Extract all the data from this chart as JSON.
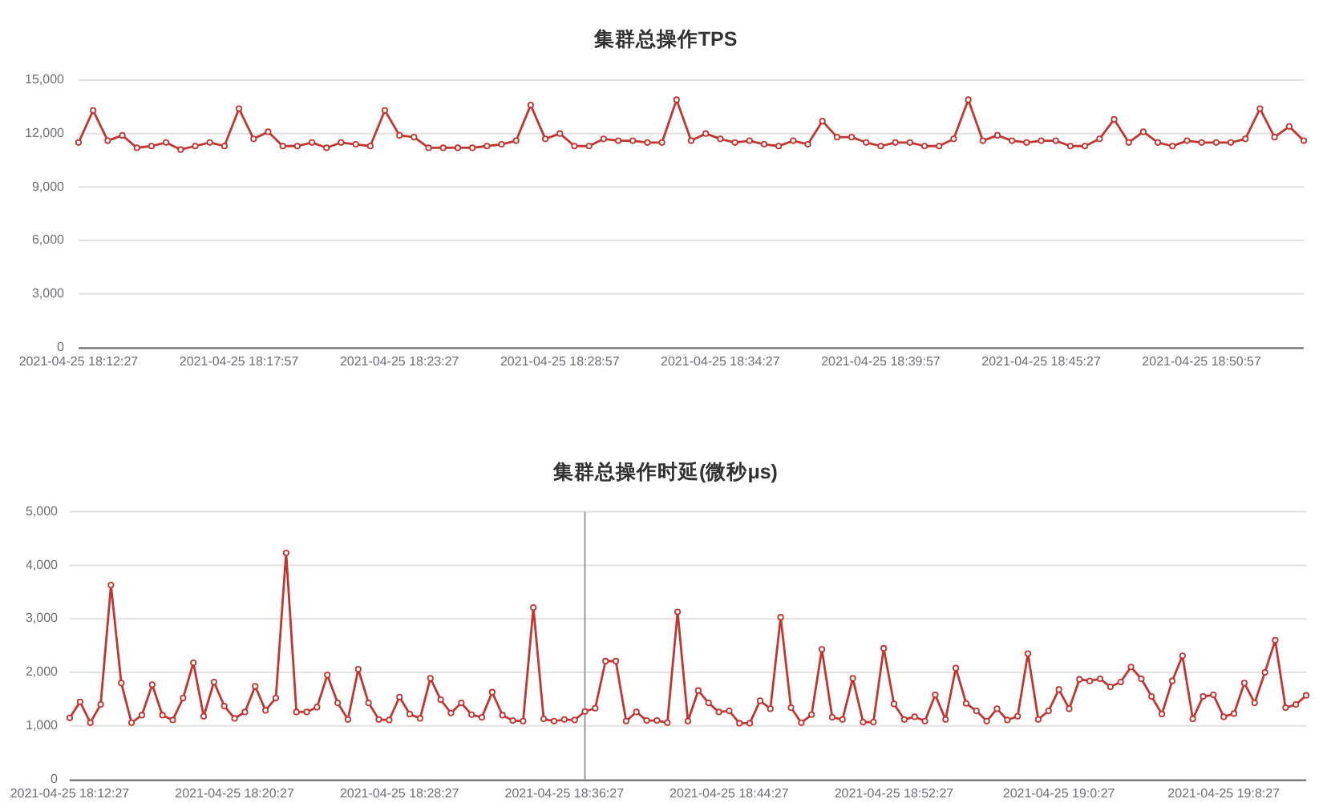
{
  "chart_data": [
    {
      "type": "line",
      "title": "集群总操作TPS",
      "x": [
        "2021-04-25T18:12:27",
        "2021-04-25T18:12:57",
        "2021-04-25T18:13:27",
        "2021-04-25T18:13:57",
        "2021-04-25T18:14:27",
        "2021-04-25T18:14:57",
        "2021-04-25T18:15:27",
        "2021-04-25T18:15:57",
        "2021-04-25T18:16:27",
        "2021-04-25T18:16:57",
        "2021-04-25T18:17:27",
        "2021-04-25T18:17:57",
        "2021-04-25T18:18:27",
        "2021-04-25T18:18:57",
        "2021-04-25T18:19:27",
        "2021-04-25T18:19:57",
        "2021-04-25T18:20:27",
        "2021-04-25T18:20:57",
        "2021-04-25T18:21:27",
        "2021-04-25T18:21:57",
        "2021-04-25T18:22:27",
        "2021-04-25T18:22:57",
        "2021-04-25T18:23:27",
        "2021-04-25T18:23:57",
        "2021-04-25T18:24:27",
        "2021-04-25T18:24:57",
        "2021-04-25T18:25:27",
        "2021-04-25T18:25:57",
        "2021-04-25T18:26:27",
        "2021-04-25T18:26:57",
        "2021-04-25T18:27:27",
        "2021-04-25T18:27:57",
        "2021-04-25T18:28:27",
        "2021-04-25T18:28:57",
        "2021-04-25T18:29:27",
        "2021-04-25T18:29:57",
        "2021-04-25T18:30:27",
        "2021-04-25T18:30:57",
        "2021-04-25T18:31:27",
        "2021-04-25T18:31:57",
        "2021-04-25T18:32:27",
        "2021-04-25T18:32:57",
        "2021-04-25T18:33:27",
        "2021-04-25T18:33:57",
        "2021-04-25T18:34:27",
        "2021-04-25T18:34:57",
        "2021-04-25T18:35:27",
        "2021-04-25T18:35:57",
        "2021-04-25T18:36:27",
        "2021-04-25T18:36:57",
        "2021-04-25T18:37:27",
        "2021-04-25T18:37:57",
        "2021-04-25T18:38:27",
        "2021-04-25T18:38:57",
        "2021-04-25T18:39:27",
        "2021-04-25T18:39:57",
        "2021-04-25T18:40:27",
        "2021-04-25T18:40:57",
        "2021-04-25T18:41:27",
        "2021-04-25T18:41:57",
        "2021-04-25T18:42:27",
        "2021-04-25T18:42:57",
        "2021-04-25T18:43:27",
        "2021-04-25T18:43:57",
        "2021-04-25T18:44:27",
        "2021-04-25T18:44:57",
        "2021-04-25T18:45:27",
        "2021-04-25T18:45:57",
        "2021-04-25T18:46:27",
        "2021-04-25T18:46:57",
        "2021-04-25T18:47:27",
        "2021-04-25T18:47:57",
        "2021-04-25T18:48:27",
        "2021-04-25T18:48:57",
        "2021-04-25T18:49:27",
        "2021-04-25T18:49:57",
        "2021-04-25T18:50:27",
        "2021-04-25T18:50:57",
        "2021-04-25T18:51:27",
        "2021-04-25T18:51:57",
        "2021-04-25T18:52:27",
        "2021-04-25T18:52:57",
        "2021-04-25T18:53:27",
        "2021-04-25T18:53:57",
        "2021-04-25T18:54:27"
      ],
      "series": [
        {
          "color": "#c23531",
          "values": [
            11500,
            13300,
            11600,
            11900,
            11200,
            11300,
            11500,
            11100,
            11300,
            11500,
            11300,
            13400,
            11700,
            12100,
            11300,
            11300,
            11500,
            11200,
            11500,
            11400,
            11300,
            13300,
            11900,
            11800,
            11200,
            11200,
            11200,
            11200,
            11300,
            11400,
            11600,
            13600,
            11700,
            12000,
            11300,
            11300,
            11700,
            11600,
            11600,
            11500,
            11500,
            13900,
            11600,
            12000,
            11700,
            11500,
            11600,
            11400,
            11300,
            11600,
            11400,
            12700,
            11800,
            11800,
            11500,
            11300,
            11500,
            11500,
            11300,
            11300,
            11700,
            13900,
            11600,
            11900,
            11600,
            11500,
            11600,
            11600,
            11300,
            11300,
            11700,
            12800,
            11500,
            12100,
            11500,
            11300,
            11600,
            11500,
            11500,
            11500,
            11700,
            13400,
            11800,
            12400,
            11600
          ]
        }
      ],
      "xlim": [
        "2021-04-25T18:12:27",
        "2021-04-25T18:54:27"
      ],
      "xticks": [
        {
          "value": "2021-04-25T18:12:27",
          "label": "2021-04-25 18:12:27"
        },
        {
          "value": "2021-04-25T18:17:57",
          "label": "2021-04-25 18:17:57"
        },
        {
          "value": "2021-04-25T18:23:27",
          "label": "2021-04-25 18:23:27"
        },
        {
          "value": "2021-04-25T18:28:57",
          "label": "2021-04-25 18:28:57"
        },
        {
          "value": "2021-04-25T18:34:27",
          "label": "2021-04-25 18:34:27"
        },
        {
          "value": "2021-04-25T18:39:57",
          "label": "2021-04-25 18:39:57"
        },
        {
          "value": "2021-04-25T18:45:27",
          "label": "2021-04-25 18:45:27"
        },
        {
          "value": "2021-04-25T18:50:57",
          "label": "2021-04-25 18:50:57"
        }
      ],
      "ylim": [
        0,
        15000
      ],
      "yticks": [
        0,
        {
          "value": 3000,
          "label": "3,000"
        },
        {
          "value": 6000,
          "label": "6,000"
        },
        {
          "value": 9000,
          "label": "9,000"
        },
        {
          "value": 12000,
          "label": "12,000"
        },
        {
          "value": 15000,
          "label": "15,000"
        }
      ],
      "grid": "y",
      "marker": "circle",
      "line_style": "solid"
    },
    {
      "type": "line",
      "title": "集群总操作时延(微秒μs)",
      "x": [
        "2021-04-25T18:12:27",
        "2021-04-25T18:12:57",
        "2021-04-25T18:13:27",
        "2021-04-25T18:13:57",
        "2021-04-25T18:14:27",
        "2021-04-25T18:14:57",
        "2021-04-25T18:15:27",
        "2021-04-25T18:15:57",
        "2021-04-25T18:16:27",
        "2021-04-25T18:16:57",
        "2021-04-25T18:17:27",
        "2021-04-25T18:17:57",
        "2021-04-25T18:18:27",
        "2021-04-25T18:18:57",
        "2021-04-25T18:19:27",
        "2021-04-25T18:19:57",
        "2021-04-25T18:20:27",
        "2021-04-25T18:20:57",
        "2021-04-25T18:21:27",
        "2021-04-25T18:21:57",
        "2021-04-25T18:22:27",
        "2021-04-25T18:22:57",
        "2021-04-25T18:23:27",
        "2021-04-25T18:23:57",
        "2021-04-25T18:24:27",
        "2021-04-25T18:24:57",
        "2021-04-25T18:25:27",
        "2021-04-25T18:25:57",
        "2021-04-25T18:26:27",
        "2021-04-25T18:26:57",
        "2021-04-25T18:27:27",
        "2021-04-25T18:27:57",
        "2021-04-25T18:28:27",
        "2021-04-25T18:28:57",
        "2021-04-25T18:29:27",
        "2021-04-25T18:29:57",
        "2021-04-25T18:30:27",
        "2021-04-25T18:30:57",
        "2021-04-25T18:31:27",
        "2021-04-25T18:31:57",
        "2021-04-25T18:32:27",
        "2021-04-25T18:32:57",
        "2021-04-25T18:33:27",
        "2021-04-25T18:33:57",
        "2021-04-25T18:34:27",
        "2021-04-25T18:34:57",
        "2021-04-25T18:35:27",
        "2021-04-25T18:35:57",
        "2021-04-25T18:36:27",
        "2021-04-25T18:36:57",
        "2021-04-25T18:37:27",
        "2021-04-25T18:37:57",
        "2021-04-25T18:38:27",
        "2021-04-25T18:38:57",
        "2021-04-25T18:39:27",
        "2021-04-25T18:39:57",
        "2021-04-25T18:40:27",
        "2021-04-25T18:40:57",
        "2021-04-25T18:41:27",
        "2021-04-25T18:41:57",
        "2021-04-25T18:42:27",
        "2021-04-25T18:42:57",
        "2021-04-25T18:43:27",
        "2021-04-25T18:43:57",
        "2021-04-25T18:44:27",
        "2021-04-25T18:44:57",
        "2021-04-25T18:45:27",
        "2021-04-25T18:45:57",
        "2021-04-25T18:46:27",
        "2021-04-25T18:46:57",
        "2021-04-25T18:47:27",
        "2021-04-25T18:47:57",
        "2021-04-25T18:48:27",
        "2021-04-25T18:48:57",
        "2021-04-25T18:49:27",
        "2021-04-25T18:49:57",
        "2021-04-25T18:50:27",
        "2021-04-25T18:50:57",
        "2021-04-25T18:51:27",
        "2021-04-25T18:51:57",
        "2021-04-25T18:52:27",
        "2021-04-25T18:52:57",
        "2021-04-25T18:53:27",
        "2021-04-25T18:53:57",
        "2021-04-25T18:54:27",
        "2021-04-25T18:54:57",
        "2021-04-25T18:55:27",
        "2021-04-25T18:55:57",
        "2021-04-25T18:56:27",
        "2021-04-25T18:56:57",
        "2021-04-25T18:57:27",
        "2021-04-25T18:57:57",
        "2021-04-25T18:58:27",
        "2021-04-25T18:58:57",
        "2021-04-25T18:59:27",
        "2021-04-25T18:59:57",
        "2021-04-25T19:00:27",
        "2021-04-25T19:00:57",
        "2021-04-25T19:01:27",
        "2021-04-25T19:01:57",
        "2021-04-25T19:02:27",
        "2021-04-25T19:02:57",
        "2021-04-25T19:03:27",
        "2021-04-25T19:03:57",
        "2021-04-25T19:04:27",
        "2021-04-25T19:04:57",
        "2021-04-25T19:05:27",
        "2021-04-25T19:05:57",
        "2021-04-25T19:06:27",
        "2021-04-25T19:06:57",
        "2021-04-25T19:07:27",
        "2021-04-25T19:07:57",
        "2021-04-25T19:08:27",
        "2021-04-25T19:08:57",
        "2021-04-25T19:09:27",
        "2021-04-25T19:09:57",
        "2021-04-25T19:10:27",
        "2021-04-25T19:10:57",
        "2021-04-25T19:11:27",
        "2021-04-25T19:11:57",
        "2021-04-25T19:12:27"
      ],
      "series": [
        {
          "color": "#c23531",
          "values": [
            1150,
            1450,
            1060,
            1400,
            3630,
            1800,
            1060,
            1200,
            1770,
            1200,
            1110,
            1520,
            2180,
            1180,
            1820,
            1370,
            1140,
            1260,
            1740,
            1290,
            1520,
            4230,
            1260,
            1260,
            1350,
            1950,
            1430,
            1120,
            2060,
            1430,
            1120,
            1110,
            1540,
            1220,
            1140,
            1890,
            1490,
            1240,
            1430,
            1210,
            1160,
            1630,
            1200,
            1100,
            1090,
            3210,
            1130,
            1090,
            1120,
            1110,
            1270,
            1330,
            2210,
            2210,
            1090,
            1260,
            1100,
            1100,
            1060,
            3130,
            1090,
            1660,
            1430,
            1260,
            1280,
            1050,
            1050,
            1470,
            1320,
            3030,
            1340,
            1060,
            1210,
            2430,
            1160,
            1120,
            1890,
            1070,
            1070,
            2450,
            1410,
            1120,
            1170,
            1090,
            1580,
            1120,
            2080,
            1420,
            1280,
            1090,
            1320,
            1110,
            1180,
            2350,
            1120,
            1280,
            1680,
            1320,
            1870,
            1840,
            1880,
            1730,
            1820,
            2100,
            1880,
            1550,
            1220,
            1840,
            2310,
            1130,
            1550,
            1580,
            1170,
            1230,
            1800,
            1430,
            2000,
            2600,
            1340,
            1400,
            1570
          ]
        }
      ],
      "xlim": [
        "2021-04-25T18:12:27",
        "2021-04-25T19:12:27"
      ],
      "xticks": [
        {
          "value": "2021-04-25T18:12:27",
          "label": "2021-04-25 18:12:27"
        },
        {
          "value": "2021-04-25T18:20:27",
          "label": "2021-04-25 18:20:27"
        },
        {
          "value": "2021-04-25T18:28:27",
          "label": "2021-04-25 18:28:27"
        },
        {
          "value": "2021-04-25T18:36:27",
          "label": "2021-04-25 18:36:27"
        },
        {
          "value": "2021-04-25T18:44:27",
          "label": "2021-04-25 18:44:27"
        },
        {
          "value": "2021-04-25T18:52:27",
          "label": "2021-04-25 18:52:27"
        },
        {
          "value": "2021-04-25T19:00:27",
          "label": "2021-04-25 19:0:27"
        },
        {
          "value": "2021-04-25T19:08:27",
          "label": "2021-04-25 19:8:27"
        }
      ],
      "ylim": [
        0,
        5000
      ],
      "yticks": [
        0,
        {
          "value": 1000,
          "label": "1,000"
        },
        {
          "value": 2000,
          "label": "2,000"
        },
        {
          "value": 3000,
          "label": "3,000"
        },
        {
          "value": 4000,
          "label": "4,000"
        },
        {
          "value": 5000,
          "label": "5,000"
        }
      ],
      "ref_lines": [
        {
          "axis": "x",
          "value": "2021-04-25T18:37:27",
          "color": "#999999",
          "line_style": "solid"
        }
      ],
      "grid": "y",
      "marker": "circle",
      "line_style": "solid"
    }
  ]
}
